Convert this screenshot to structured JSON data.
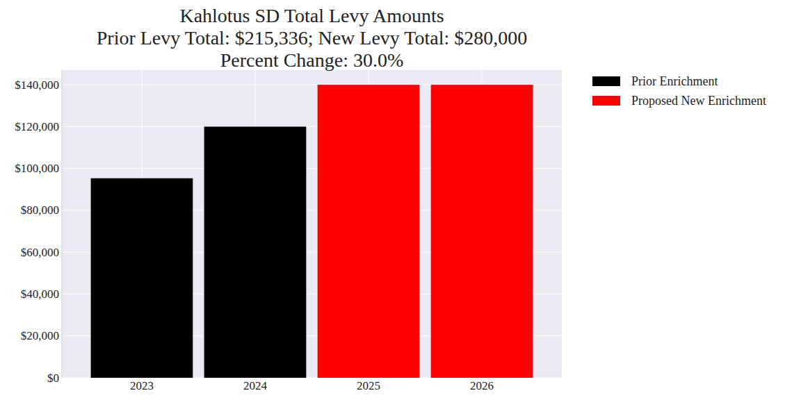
{
  "chart_data": {
    "type": "bar",
    "title": "Kahlotus SD Total Levy Amounts\nPrior Levy Total:  $215,336; New Levy Total: $280,000\nPercent Change: 30.0%",
    "categories": [
      "2023",
      "2024",
      "2025",
      "2026"
    ],
    "series": [
      {
        "name": "Prior Enrichment",
        "color": "#000000",
        "values": [
          95336,
          120000,
          null,
          null
        ]
      },
      {
        "name": "Proposed New Enrichment",
        "color": "#ff0000",
        "values": [
          null,
          null,
          140000,
          140000
        ]
      }
    ],
    "ylim": [
      0,
      147000
    ],
    "yticks": [
      {
        "value": 0,
        "label": "$0"
      },
      {
        "value": 20000,
        "label": "$20,000"
      },
      {
        "value": 40000,
        "label": "$40,000"
      },
      {
        "value": 60000,
        "label": "$60,000"
      },
      {
        "value": 80000,
        "label": "$80,000"
      },
      {
        "value": 100000,
        "label": "$100,000"
      },
      {
        "value": 120000,
        "label": "$120,000"
      },
      {
        "value": 140000,
        "label": "$140,000"
      }
    ],
    "grid": true,
    "legend": "right"
  }
}
